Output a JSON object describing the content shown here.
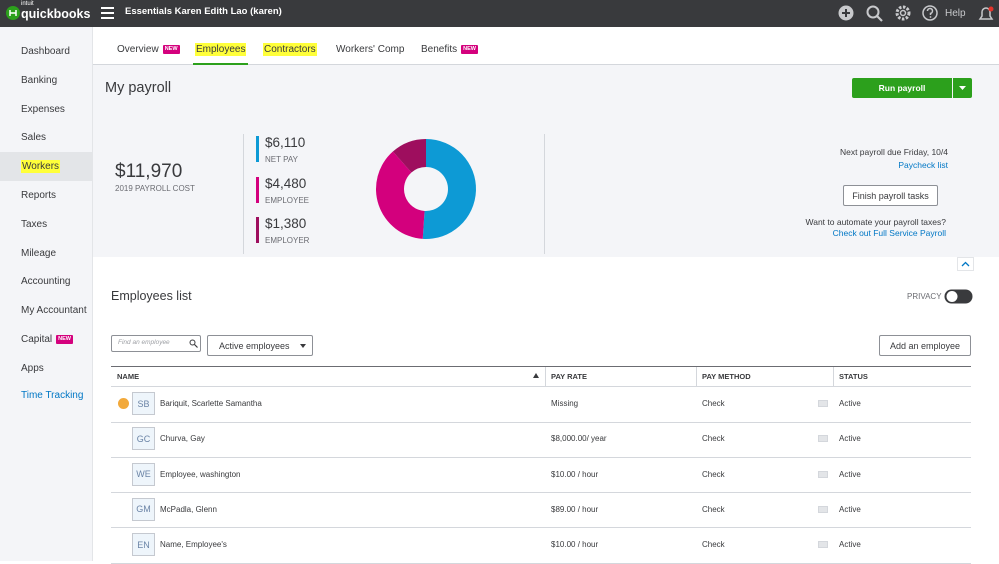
{
  "header": {
    "logo_small": "intuit",
    "logo": "quickbooks",
    "company": "Essentials Karen Edith Lao (karen)",
    "help": "Help"
  },
  "sidebar": [
    {
      "label": "Dashboard"
    },
    {
      "label": "Banking"
    },
    {
      "label": "Expenses"
    },
    {
      "label": "Sales"
    },
    {
      "label": "Workers",
      "highlighted": true
    },
    {
      "label": "Reports"
    },
    {
      "label": "Taxes"
    },
    {
      "label": "Mileage"
    },
    {
      "label": "Accounting"
    },
    {
      "label": "My Accountant"
    },
    {
      "label": "Capital",
      "badge": "NEW"
    },
    {
      "label": "Apps"
    },
    {
      "label": "Time Tracking",
      "link": true
    }
  ],
  "tabs": [
    {
      "label": "Overview",
      "badge": "NEW"
    },
    {
      "label": "Employees",
      "highlighted": true,
      "active": true
    },
    {
      "label": "Contractors",
      "highlighted": true
    },
    {
      "label": "Workers' Comp"
    },
    {
      "label": "Benefits",
      "badge": "NEW"
    }
  ],
  "page_title": "My payroll",
  "run_payroll": "Run payroll",
  "summary": {
    "total": "$11,970",
    "total_caption": "2019 PAYROLL COST",
    "breakdown": [
      {
        "label": "$6,110",
        "value": 6110,
        "caption": "NET PAY",
        "color": "#0d9ad5"
      },
      {
        "label": "$4,480",
        "value": 4480,
        "caption": "EMPLOYEE",
        "color": "#d3007d"
      },
      {
        "label": "$1,380",
        "value": 1380,
        "caption": "EMPLOYER",
        "color": "#9e0e5e"
      }
    ]
  },
  "next_payroll": {
    "due": "Next payroll due Friday, 10/4",
    "paycheck_link": "Paycheck list",
    "finish_button": "Finish payroll tasks",
    "automate": "Want to automate your payroll taxes?",
    "full_service_link": "Check out Full Service Payroll"
  },
  "employees": {
    "title": "Employees list",
    "privacy": "PRIVACY",
    "search_placeholder": "Find an employee",
    "filter": "Active employees",
    "add_button": "Add an employee",
    "columns": [
      "NAME",
      "PAY RATE",
      "PAY METHOD",
      "STATUS"
    ],
    "rows": [
      {
        "initials": "SB",
        "name": "Bariquit, Scarlette Samantha",
        "pay_rate": "Missing",
        "pay_method": "Check",
        "status": "Active",
        "warning": true
      },
      {
        "initials": "GC",
        "name": "Churva, Gay",
        "pay_rate": "$8,000.00/ year",
        "pay_method": "Check",
        "status": "Active"
      },
      {
        "initials": "WE",
        "name": "Employee, washington",
        "pay_rate": "$10.00 / hour",
        "pay_method": "Check",
        "status": "Active"
      },
      {
        "initials": "GM",
        "name": "McPadla, Glenn",
        "pay_rate": "$89.00 / hour",
        "pay_method": "Check",
        "status": "Active"
      },
      {
        "initials": "EN",
        "name": "Name, Employee's",
        "pay_rate": "$10.00 / hour",
        "pay_method": "Check",
        "status": "Active"
      }
    ]
  }
}
